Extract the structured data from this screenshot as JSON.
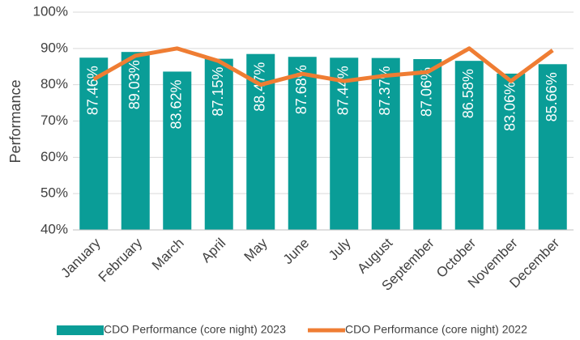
{
  "chart_data": {
    "type": "bar_line",
    "y_label": "Performance",
    "categories": [
      "January",
      "February",
      "March",
      "April",
      "May",
      "June",
      "July",
      "August",
      "September",
      "October",
      "November",
      "December"
    ],
    "series": [
      {
        "name": "CDO Performance (core night) 2023",
        "type": "bar",
        "color": "#0a9d97",
        "values": [
          87.46,
          89.03,
          83.62,
          87.15,
          88.47,
          87.68,
          87.44,
          87.37,
          87.06,
          86.58,
          83.06,
          85.66
        ],
        "value_labels": [
          "87.46%",
          "89.03%",
          "83.62%",
          "87.15%",
          "88.47%",
          "87.68%",
          "87.44%",
          "87.37%",
          "87.06%",
          "86.58%",
          "83.06%",
          "85.66%"
        ]
      },
      {
        "name": "CDO Performance (core night) 2022",
        "type": "line",
        "color": "#ef7d33",
        "values": [
          81.5,
          88,
          90,
          86.5,
          80,
          83,
          81,
          82.5,
          83.5,
          90,
          81,
          89.5
        ]
      }
    ],
    "ylim": [
      40,
      100
    ],
    "yticks": [
      {
        "value": 40,
        "label": "40%"
      },
      {
        "value": 50,
        "label": "50%"
      },
      {
        "value": 60,
        "label": "60%"
      },
      {
        "value": 70,
        "label": "70%"
      },
      {
        "value": 80,
        "label": "80%"
      },
      {
        "value": 90,
        "label": "90%"
      },
      {
        "value": 100,
        "label": "100%"
      }
    ],
    "grid": true,
    "legend": "bottom"
  }
}
